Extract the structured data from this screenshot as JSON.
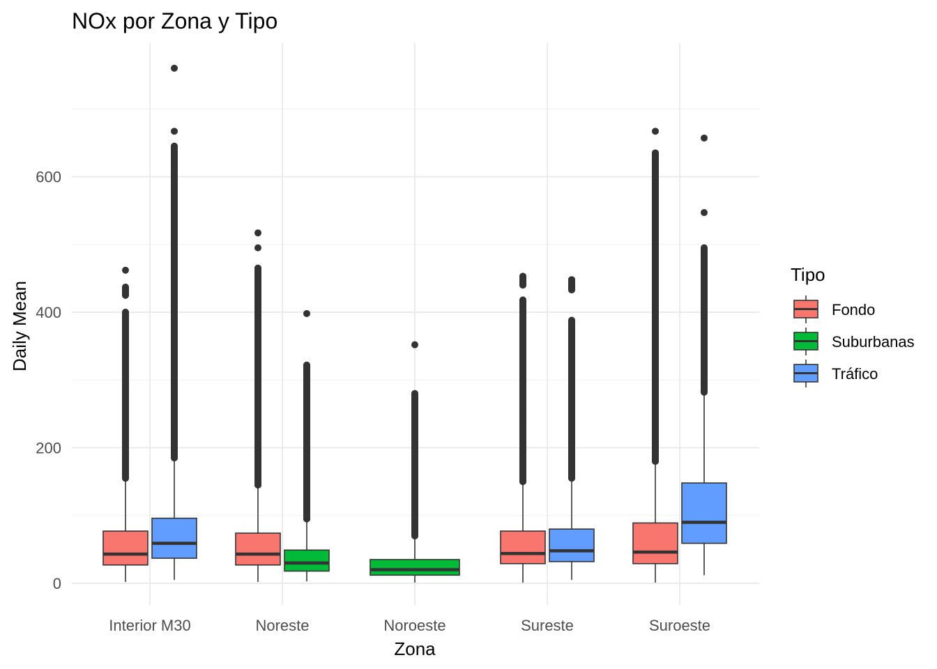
{
  "chart_data": {
    "type": "boxplot",
    "title": "NOx por Zona y Tipo",
    "xlabel": "Zona",
    "ylabel": "Daily Mean",
    "categories": [
      "Interior M30",
      "Noreste",
      "Noroeste",
      "Sureste",
      "Suroeste"
    ],
    "yticks": [
      0,
      200,
      400,
      600
    ],
    "ylim": [
      -30,
      800
    ],
    "grid": true,
    "legend": {
      "title": "Tipo",
      "position": "right",
      "entries": [
        {
          "label": "Fondo",
          "color": "#F8766D"
        },
        {
          "label": "Suburbanas",
          "color": "#00BA38"
        },
        {
          "label": "Tráfico",
          "color": "#619CFF"
        }
      ]
    },
    "series": [
      {
        "category": "Interior M30",
        "tipo": "Fondo",
        "min": 2,
        "q1": 27,
        "median": 43,
        "q3": 77,
        "whisker_high": 152,
        "outliers": [
          155,
          160,
          170,
          180,
          190,
          200,
          210,
          220,
          230,
          240,
          250,
          260,
          270,
          280,
          290,
          300,
          310,
          320,
          330,
          340,
          350,
          360,
          370,
          380,
          390,
          395,
          400,
          425,
          437,
          462
        ]
      },
      {
        "category": "Interior M30",
        "tipo": "Tráfico",
        "min": 5,
        "q1": 37,
        "median": 59,
        "q3": 96,
        "whisker_high": 180,
        "outliers": [
          185,
          200,
          220,
          240,
          260,
          280,
          300,
          320,
          340,
          360,
          380,
          400,
          420,
          440,
          450,
          470,
          490,
          500,
          510,
          520,
          535,
          550,
          560,
          570,
          588,
          605,
          615,
          625,
          635,
          645,
          667,
          760
        ]
      },
      {
        "category": "Noreste",
        "tipo": "Fondo",
        "min": 2,
        "q1": 27,
        "median": 43,
        "q3": 74,
        "whisker_high": 142,
        "outliers": [
          145,
          160,
          180,
          200,
          220,
          240,
          260,
          280,
          300,
          320,
          340,
          355,
          365,
          380,
          390,
          400,
          410,
          420,
          430,
          440,
          450,
          465,
          495,
          517
        ]
      },
      {
        "category": "Noreste",
        "tipo": "Suburbanas",
        "min": 3,
        "q1": 18,
        "median": 30,
        "q3": 49,
        "whisker_high": 92,
        "outliers": [
          95,
          110,
          120,
          130,
          140,
          150,
          160,
          170,
          180,
          190,
          200,
          210,
          225,
          238,
          250,
          262,
          275,
          290,
          305,
          318,
          322,
          398
        ]
      },
      {
        "category": "Noroeste",
        "tipo": "Suburbanas",
        "min": 1,
        "q1": 12,
        "median": 20,
        "q3": 35,
        "whisker_high": 67,
        "outliers": [
          70,
          80,
          90,
          100,
          110,
          120,
          130,
          140,
          150,
          160,
          170,
          180,
          190,
          200,
          208,
          218,
          228,
          240,
          257,
          275,
          280,
          352
        ]
      },
      {
        "category": "Sureste",
        "tipo": "Fondo",
        "min": 1,
        "q1": 29,
        "median": 44,
        "q3": 77,
        "whisker_high": 147,
        "outliers": [
          150,
          160,
          180,
          200,
          220,
          240,
          260,
          280,
          300,
          320,
          340,
          355,
          370,
          385,
          395,
          405,
          418,
          440,
          447,
          453
        ]
      },
      {
        "category": "Sureste",
        "tipo": "Tráfico",
        "min": 5,
        "q1": 32,
        "median": 48,
        "q3": 80,
        "whisker_high": 150,
        "outliers": [
          155,
          170,
          190,
          210,
          230,
          250,
          270,
          290,
          300,
          310,
          320,
          330,
          340,
          350,
          360,
          370,
          380,
          388,
          433,
          448
        ]
      },
      {
        "category": "Suroeste",
        "tipo": "Fondo",
        "min": 1,
        "q1": 29,
        "median": 46,
        "q3": 89,
        "whisker_high": 175,
        "outliers": [
          180,
          200,
          220,
          240,
          260,
          280,
          300,
          320,
          340,
          360,
          380,
          400,
          420,
          440,
          460,
          480,
          500,
          515,
          530,
          545,
          560,
          570,
          580,
          590,
          600,
          612,
          622,
          635,
          667
        ]
      },
      {
        "category": "Suroeste",
        "tipo": "Tráfico",
        "min": 12,
        "q1": 59,
        "median": 90,
        "q3": 148,
        "whisker_high": 278,
        "outliers": [
          282,
          290,
          300,
          310,
          320,
          330,
          340,
          350,
          360,
          370,
          380,
          390,
          400,
          410,
          420,
          430,
          440,
          455,
          465,
          475,
          480,
          495,
          547,
          657
        ]
      }
    ]
  }
}
